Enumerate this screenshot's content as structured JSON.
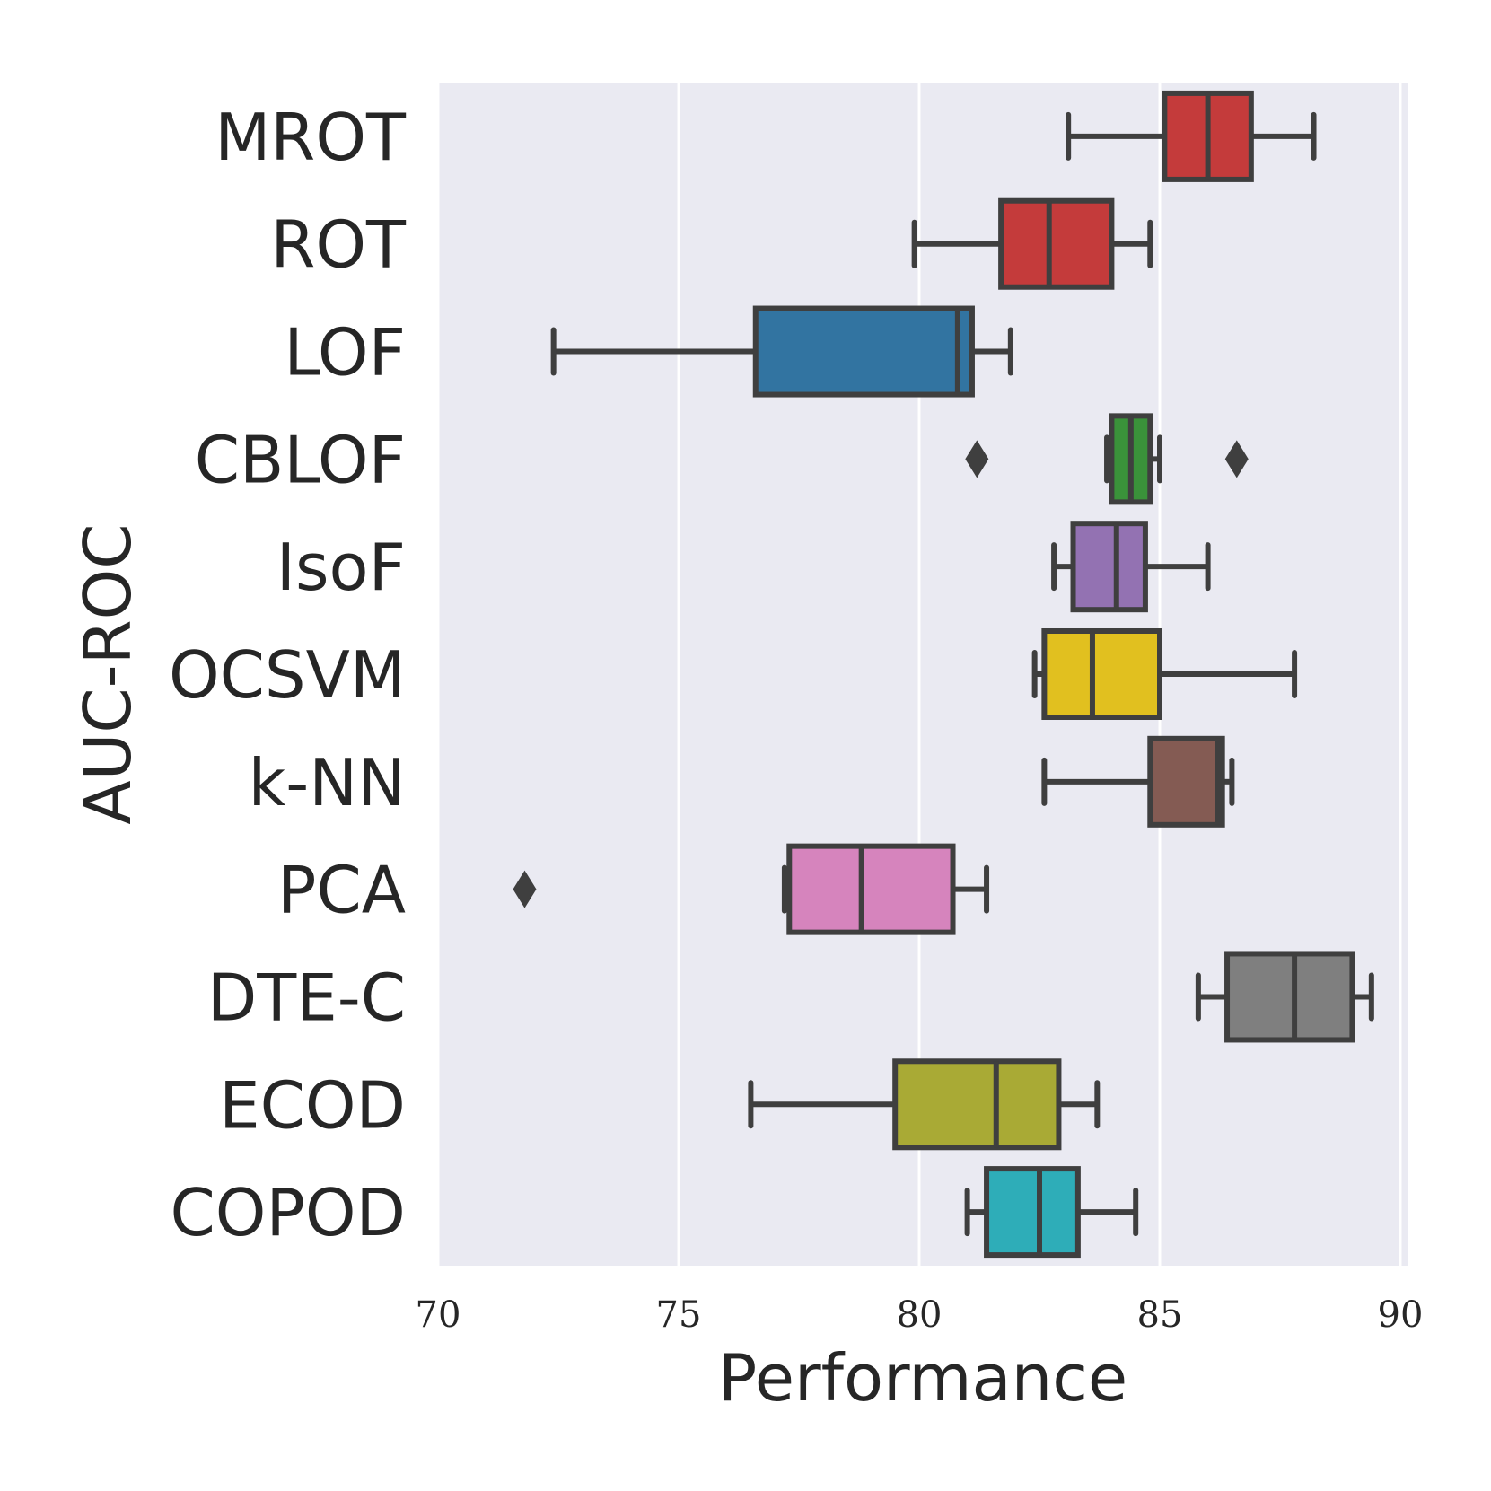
{
  "chart_data": {
    "type": "boxplot",
    "orientation": "horizontal",
    "title": "",
    "xlabel": "Performance",
    "ylabel": "AUC-ROC",
    "xlim": [
      70,
      90.5
    ],
    "xticks": [
      70,
      75,
      80,
      85,
      90
    ],
    "xtick_labels": [
      "70",
      "75",
      "80",
      "85",
      "90"
    ],
    "grid": true,
    "categories": [
      "MROT",
      "ROT",
      "LOF",
      "CBLOF",
      "IsoF",
      "OCSVM",
      "k-NN",
      "PCA",
      "DTE-C",
      "ECOD",
      "COPOD"
    ],
    "boxes": [
      {
        "name": "MROT",
        "color": "#c43b3b",
        "whisker_low": 83.1,
        "q1": 85.1,
        "median": 86.0,
        "q3": 86.9,
        "whisker_high": 88.2,
        "outliers": []
      },
      {
        "name": "ROT",
        "color": "#c43b3b",
        "whisker_low": 79.9,
        "q1": 81.7,
        "median": 82.7,
        "q3": 84.0,
        "whisker_high": 84.8,
        "outliers": []
      },
      {
        "name": "LOF",
        "color": "#3274a1",
        "whisker_low": 72.4,
        "q1": 76.6,
        "median": 80.8,
        "q3": 81.1,
        "whisker_high": 81.9,
        "outliers": []
      },
      {
        "name": "CBLOF",
        "color": "#3a923a",
        "whisker_low": 83.9,
        "q1": 84.0,
        "median": 84.4,
        "q3": 84.8,
        "whisker_high": 85.0,
        "outliers": [
          81.2,
          86.6
        ]
      },
      {
        "name": "IsoF",
        "color": "#9372b2",
        "whisker_low": 82.8,
        "q1": 83.2,
        "median": 84.1,
        "q3": 84.7,
        "whisker_high": 86.0,
        "outliers": []
      },
      {
        "name": "OCSVM",
        "color": "#e1c01f",
        "whisker_low": 82.4,
        "q1": 82.6,
        "median": 83.6,
        "q3": 85.0,
        "whisker_high": 87.8,
        "outliers": []
      },
      {
        "name": "k-NN",
        "color": "#845b53",
        "whisker_low": 82.6,
        "q1": 84.8,
        "median": 86.2,
        "q3": 86.3,
        "whisker_high": 86.5,
        "outliers": []
      },
      {
        "name": "PCA",
        "color": "#d684bd",
        "whisker_low": 77.2,
        "q1": 77.3,
        "median": 78.8,
        "q3": 80.7,
        "whisker_high": 81.4,
        "outliers": [
          71.8
        ]
      },
      {
        "name": "DTE-C",
        "color": "#7f7f7f",
        "whisker_low": 85.8,
        "q1": 86.4,
        "median": 87.8,
        "q3": 89.0,
        "whisker_high": 89.4,
        "outliers": []
      },
      {
        "name": "ECOD",
        "color": "#a9aa35",
        "whisker_low": 76.5,
        "q1": 79.5,
        "median": 81.6,
        "q3": 82.9,
        "whisker_high": 83.7,
        "outliers": []
      },
      {
        "name": "COPOD",
        "color": "#2eadb8",
        "whisker_low": 81.0,
        "q1": 81.4,
        "median": 82.5,
        "q3": 83.3,
        "whisker_high": 84.5,
        "outliers": []
      }
    ]
  }
}
